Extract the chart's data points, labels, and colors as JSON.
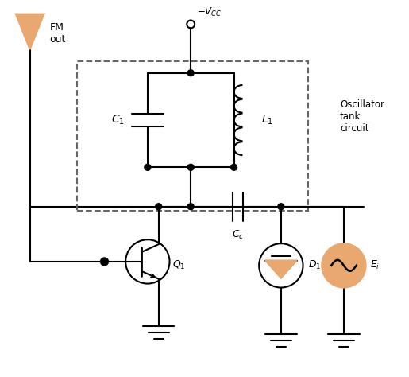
{
  "bg_color": "#ffffff",
  "line_color": "#000000",
  "orange_color": "#E8A870",
  "oscillator_label": "Oscillator\ntank\ncircuit",
  "labels": {
    "C1": "$C_1$",
    "L1": "$L_1$",
    "Cc": "$C_c$",
    "Q1": "$Q_1$",
    "D1": "$D_1$",
    "Ei": "$E_i$",
    "VCC": "$-V_{CC}$",
    "FM": "FM\nout"
  },
  "figsize": [
    5.15,
    4.74
  ],
  "dpi": 100
}
